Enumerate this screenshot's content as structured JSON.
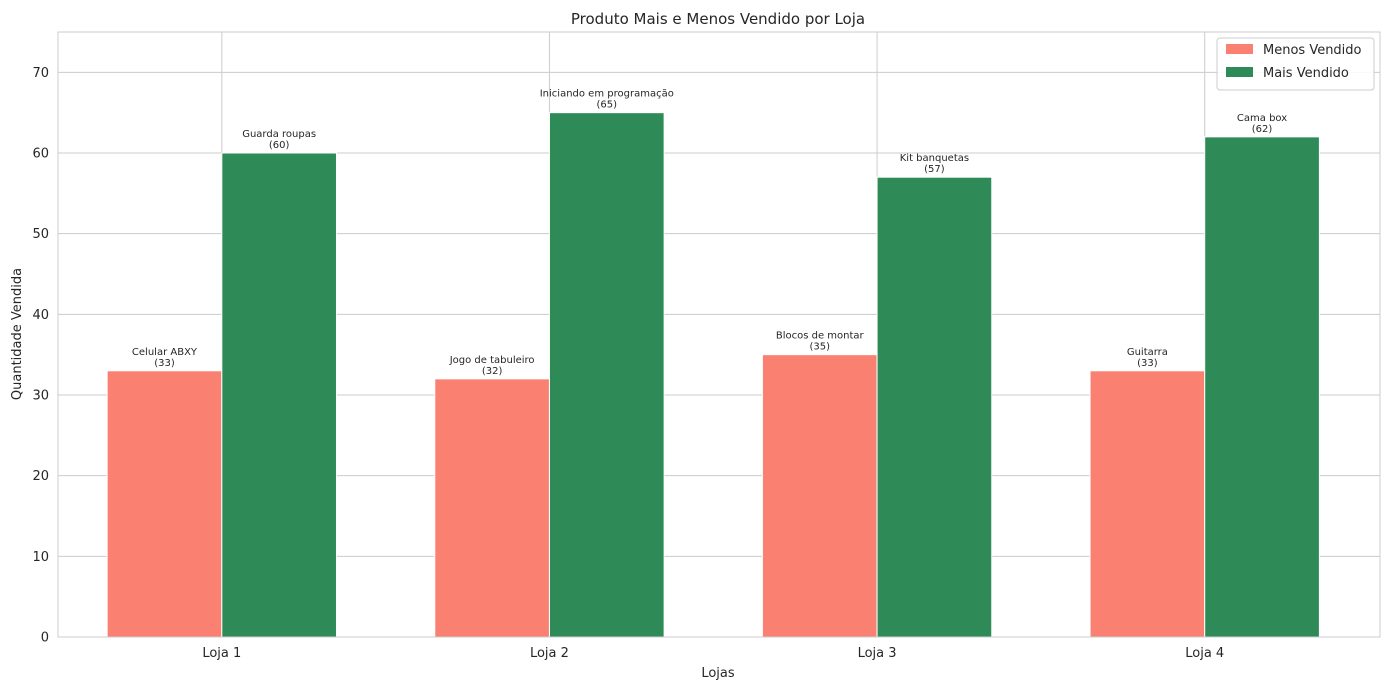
{
  "chart_data": {
    "type": "bar",
    "title": "Produto Mais e Menos Vendido por Loja",
    "xlabel": "Lojas",
    "ylabel": "Quantidade Vendida",
    "ylim": [
      0,
      75
    ],
    "yticks": [
      0,
      10,
      20,
      30,
      40,
      50,
      60,
      70
    ],
    "grid": true,
    "legend_position": "top-right",
    "categories": [
      "Loja 1",
      "Loja 2",
      "Loja 3",
      "Loja 4"
    ],
    "series": [
      {
        "name": "Menos Vendido",
        "color": "#fa8072",
        "values": [
          33,
          32,
          35,
          33
        ],
        "products": [
          "Celular ABXY",
          "Jogo de tabuleiro",
          "Blocos de montar",
          "Guitarra"
        ],
        "value_labels": [
          "(33)",
          "(32)",
          "(35)",
          "(33)"
        ]
      },
      {
        "name": "Mais Vendido",
        "color": "#2e8b57",
        "values": [
          60,
          65,
          57,
          62
        ],
        "products": [
          "Guarda roupas",
          "Iniciando em programação",
          "Kit banquetas",
          "Cama box"
        ],
        "value_labels": [
          "(60)",
          "(65)",
          "(57)",
          "(62)"
        ]
      }
    ]
  }
}
